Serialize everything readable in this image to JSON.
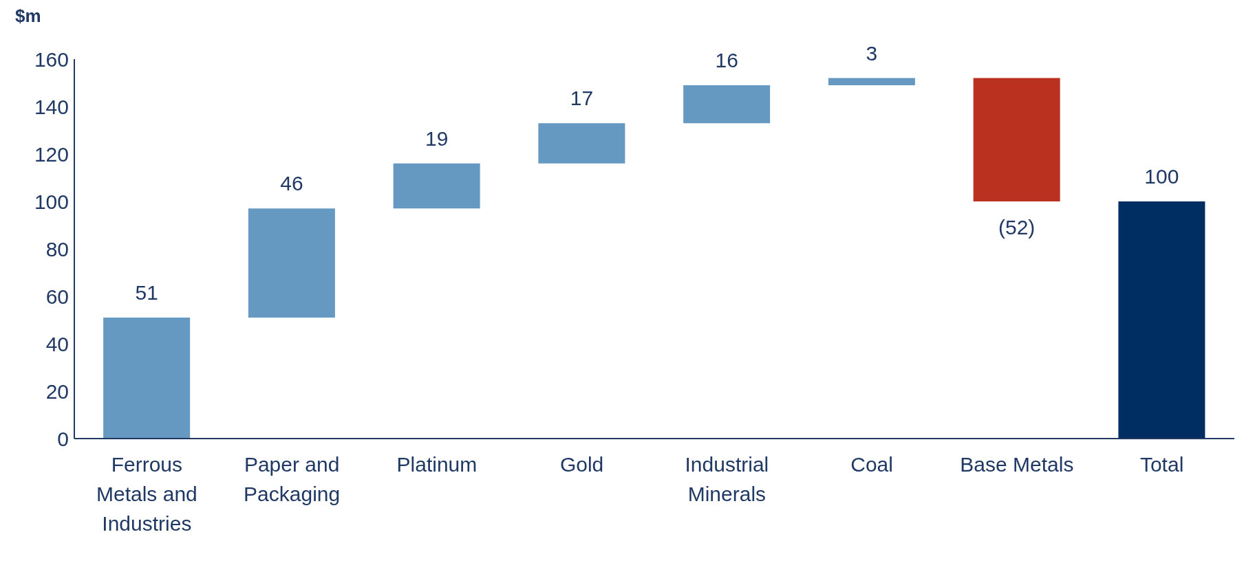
{
  "chart_data": {
    "type": "bar",
    "ylabel": "$m",
    "categories": [
      "Ferrous Metals and Industries",
      "Paper and Packaging",
      "Platinum",
      "Gold",
      "Industrial Minerals",
      "Coal",
      "Base Metals",
      "Total"
    ],
    "values": [
      51,
      46,
      19,
      17,
      16,
      3,
      -52,
      100
    ],
    "base": [
      0,
      51,
      97,
      116,
      133,
      149,
      152,
      0
    ],
    "colors": [
      "#6699c2",
      "#6699c2",
      "#6699c2",
      "#6699c2",
      "#6699c2",
      "#6699c2",
      "#bb311f",
      "#002d62"
    ],
    "value_labels": [
      "51",
      "46",
      "19",
      "17",
      "16",
      "3",
      "(52)",
      "100"
    ],
    "ylim": [
      0,
      160
    ],
    "yticks": [
      0,
      20,
      40,
      60,
      80,
      100,
      120,
      140,
      160
    ],
    "grid": false,
    "legend": false
  }
}
